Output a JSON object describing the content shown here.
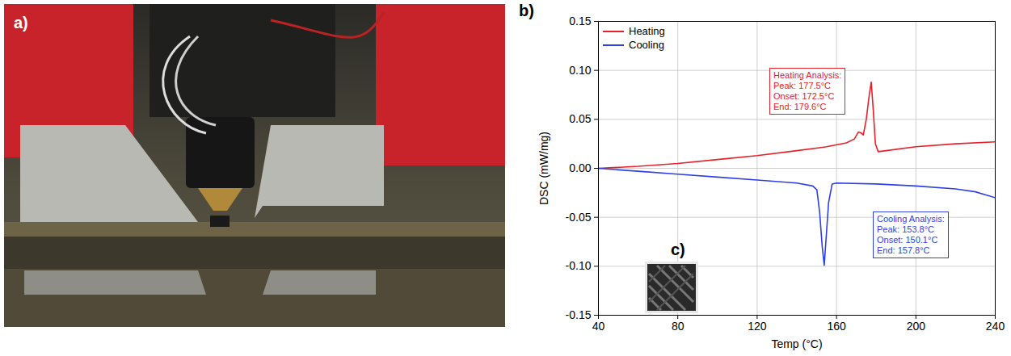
{
  "panel_labels": [
    "a)",
    "b)",
    "c)"
  ],
  "chart_data": {
    "type": "line",
    "x_label": "Temp (°C)",
    "y_label": "DSC (mW/mg)",
    "xlim": [
      40,
      240
    ],
    "xticks": [
      40,
      80,
      120,
      160,
      200,
      240
    ],
    "ylim": [
      -0.15,
      0.15
    ],
    "yticks": [
      {
        "value": -0.15,
        "label": "-0.15"
      },
      {
        "value": -0.1,
        "label": "-0.10"
      },
      {
        "value": -0.05,
        "label": "-0.05"
      },
      {
        "value": 0,
        "label": "0.00"
      },
      {
        "value": 0.05,
        "label": "0.05"
      },
      {
        "value": 0.1,
        "label": "0.10"
      },
      {
        "value": 0.15,
        "label": "0.15"
      }
    ],
    "grid": true,
    "legend": "top-left",
    "series": [
      {
        "name": "Heating",
        "color": "#e8202a",
        "x": [
          40,
          60,
          80,
          100,
          120,
          140,
          155,
          165,
          169,
          171,
          172.5,
          173.5,
          175,
          176.5,
          177.5,
          178.5,
          179.6,
          181,
          185,
          200,
          220,
          240
        ],
        "values": [
          0,
          0.002,
          0.005,
          0.009,
          0.013,
          0.018,
          0.022,
          0.026,
          0.03,
          0.037,
          0.036,
          0.034,
          0.05,
          0.075,
          0.088,
          0.06,
          0.025,
          0.017,
          0.018,
          0.022,
          0.025,
          0.027
        ],
        "annotation": [
          "Heating Analysis:",
          "Peak: 177.5°C",
          "Onset: 172.5°C",
          "End: 179.6°C"
        ]
      },
      {
        "name": "Cooling",
        "color": "#2f3fe8",
        "x": [
          40,
          60,
          80,
          100,
          120,
          140,
          148,
          150.1,
          151.5,
          152.8,
          153.8,
          154.8,
          156,
          157.8,
          160,
          180,
          200,
          220,
          230,
          240
        ],
        "values": [
          0,
          -0.003,
          -0.006,
          -0.009,
          -0.012,
          -0.015,
          -0.018,
          -0.022,
          -0.045,
          -0.08,
          -0.099,
          -0.07,
          -0.035,
          -0.016,
          -0.015,
          -0.016,
          -0.018,
          -0.021,
          -0.024,
          -0.03
        ],
        "annotation": [
          "Cooling Analysis:",
          "Peak: 153.8°C",
          "Onset: 150.1°C",
          "End: 157.8°C"
        ]
      }
    ]
  }
}
